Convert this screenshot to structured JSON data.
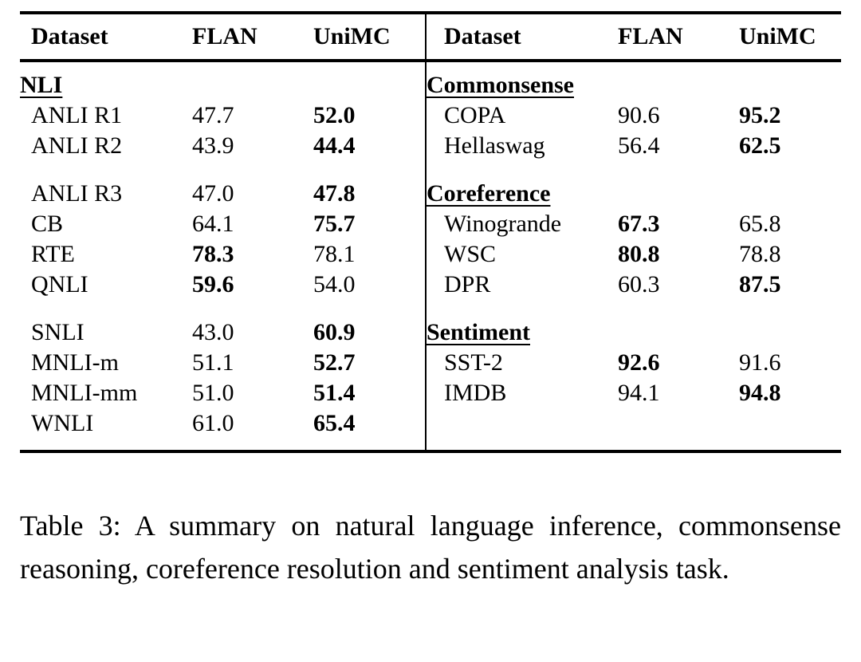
{
  "colors": {
    "text": "#000000",
    "background": "#ffffff",
    "rule": "#000000"
  },
  "columns": [
    "Dataset",
    "FLAN",
    "UniMC"
  ],
  "left": {
    "blocks": [
      {
        "header": "NLI",
        "rows": [
          {
            "dataset": "ANLI R1",
            "flan": "47.7",
            "unimc": "52.0",
            "flan_bold": false,
            "unimc_bold": true
          },
          {
            "dataset": "ANLI R2",
            "flan": "43.9",
            "unimc": "44.4",
            "flan_bold": false,
            "unimc_bold": true
          }
        ]
      },
      {
        "rows": [
          {
            "dataset": "ANLI R3",
            "flan": "47.0",
            "unimc": "47.8",
            "flan_bold": false,
            "unimc_bold": true
          },
          {
            "dataset": "CB",
            "flan": "64.1",
            "unimc": "75.7",
            "flan_bold": false,
            "unimc_bold": true
          },
          {
            "dataset": "RTE",
            "flan": "78.3",
            "unimc": "78.1",
            "flan_bold": true,
            "unimc_bold": false
          },
          {
            "dataset": "QNLI",
            "flan": "59.6",
            "unimc": "54.0",
            "flan_bold": true,
            "unimc_bold": false
          }
        ]
      },
      {
        "rows": [
          {
            "dataset": "SNLI",
            "flan": "43.0",
            "unimc": "60.9",
            "flan_bold": false,
            "unimc_bold": true
          },
          {
            "dataset": "MNLI-m",
            "flan": "51.1",
            "unimc": "52.7",
            "flan_bold": false,
            "unimc_bold": true
          },
          {
            "dataset": "MNLI-mm",
            "flan": "51.0",
            "unimc": "51.4",
            "flan_bold": false,
            "unimc_bold": true
          },
          {
            "dataset": "WNLI",
            "flan": "61.0",
            "unimc": "65.4",
            "flan_bold": false,
            "unimc_bold": true
          }
        ]
      }
    ]
  },
  "right": {
    "blocks": [
      {
        "header": "Commonsense",
        "rows": [
          {
            "dataset": "COPA",
            "flan": "90.6",
            "unimc": "95.2",
            "flan_bold": false,
            "unimc_bold": true
          },
          {
            "dataset": "Hellaswag",
            "flan": "56.4",
            "unimc": "62.5",
            "flan_bold": false,
            "unimc_bold": true
          }
        ]
      },
      {
        "header": "Coreference",
        "rows": [
          {
            "dataset": "Winogrande",
            "flan": "67.3",
            "unimc": "65.8",
            "flan_bold": true,
            "unimc_bold": false
          },
          {
            "dataset": "WSC",
            "flan": "80.8",
            "unimc": "78.8",
            "flan_bold": true,
            "unimc_bold": false
          },
          {
            "dataset": "DPR",
            "flan": "60.3",
            "unimc": "87.5",
            "flan_bold": false,
            "unimc_bold": true
          }
        ]
      },
      {
        "header": "Sentiment",
        "rows": [
          {
            "dataset": "SST-2",
            "flan": "92.6",
            "unimc": "91.6",
            "flan_bold": true,
            "unimc_bold": false
          },
          {
            "dataset": "IMDB",
            "flan": "94.1",
            "unimc": "94.8",
            "flan_bold": false,
            "unimc_bold": true
          }
        ]
      }
    ]
  },
  "caption": "Table 3:  A summary on natural language inference, commonsense reasoning, coreference resolution and sentiment analysis task."
}
